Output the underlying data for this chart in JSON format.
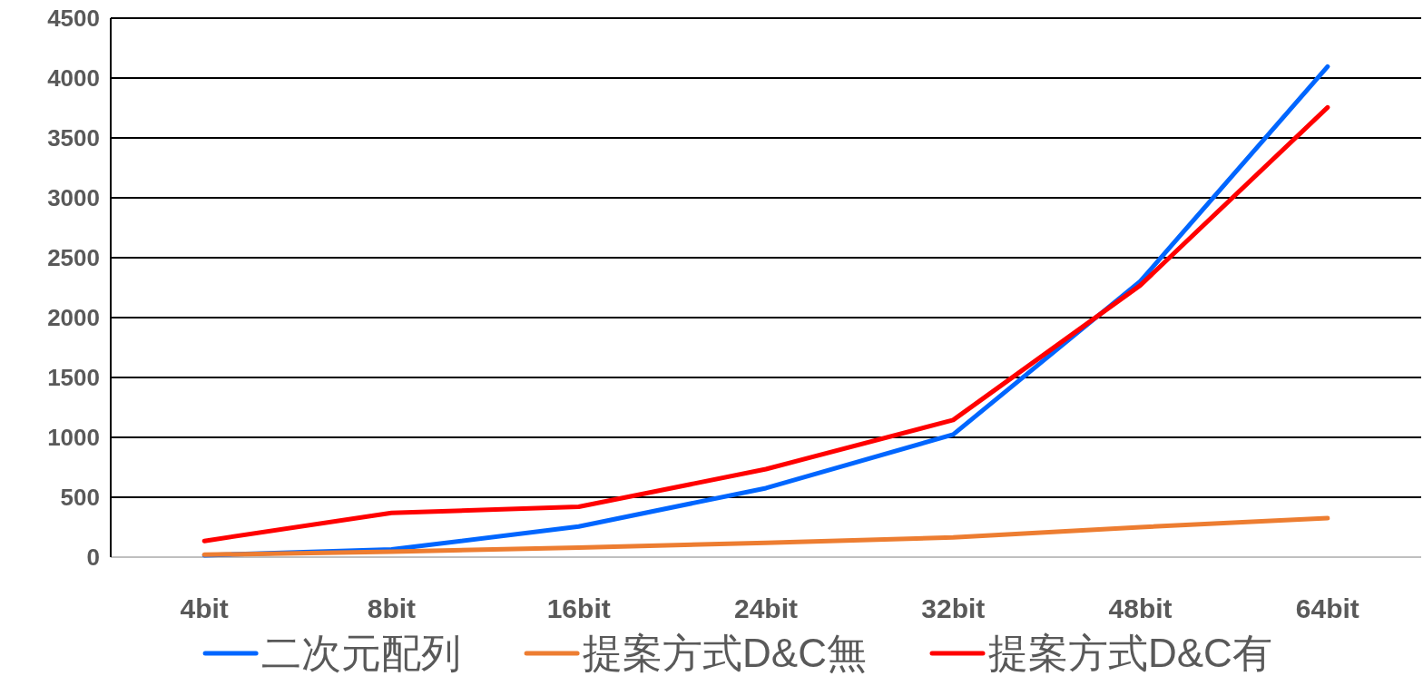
{
  "chart_data": {
    "type": "line",
    "categories": [
      "4bit",
      "8bit",
      "16bit",
      "24bit",
      "32bit",
      "48bit",
      "64bit"
    ],
    "ylim": [
      0,
      4500
    ],
    "yticks": [
      0,
      500,
      1000,
      1500,
      2000,
      2500,
      3000,
      3500,
      4000,
      4500
    ],
    "grid": "y",
    "legend": "bottom",
    "marker": "none",
    "line_style": "solid",
    "series": [
      {
        "name": "二次元配列",
        "color": "#0066ff",
        "values": [
          16,
          64,
          256,
          576,
          1024,
          2304,
          4096
        ]
      },
      {
        "name": "提案方式D&C無",
        "color": "#ed7d31",
        "values": [
          20,
          45,
          80,
          120,
          165,
          250,
          325
        ]
      },
      {
        "name": "提案方式D&C有",
        "color": "#ff0000",
        "values": [
          135,
          370,
          420,
          735,
          1145,
          2270,
          3755
        ]
      }
    ]
  }
}
